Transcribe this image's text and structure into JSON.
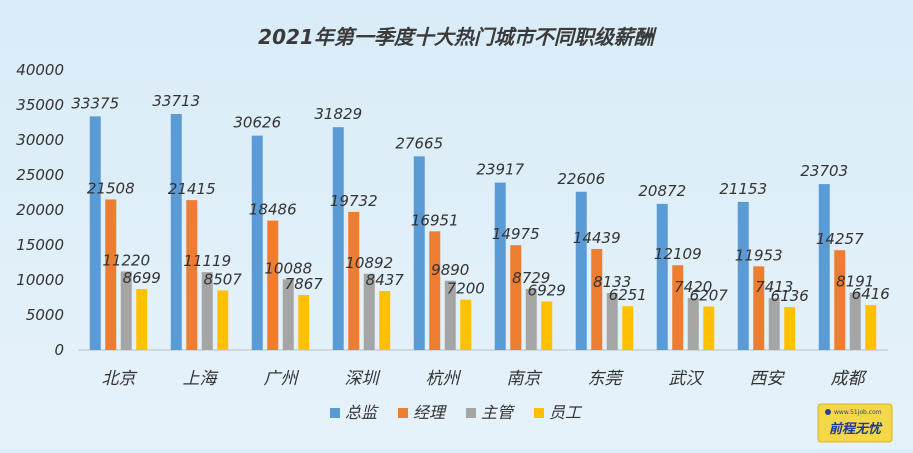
{
  "chart_data": {
    "type": "bar",
    "title": "2021年第一季度十大热门城市不同职级薪酬",
    "xlabel": "",
    "ylabel": "",
    "ylim": [
      0,
      40000
    ],
    "yticks": [
      0,
      5000,
      10000,
      15000,
      20000,
      25000,
      30000,
      35000,
      40000
    ],
    "grid": false,
    "legend_position": "bottom",
    "categories": [
      "北京",
      "上海",
      "广州",
      "深圳",
      "杭州",
      "南京",
      "东莞",
      "武汉",
      "西安",
      "成都"
    ],
    "series": [
      {
        "name": "总监",
        "color": "#5b9bd5",
        "values": [
          33375,
          33713,
          30626,
          31829,
          27665,
          23917,
          22606,
          20872,
          21153,
          23703
        ]
      },
      {
        "name": "经理",
        "color": "#ed7d31",
        "values": [
          21508,
          21415,
          18486,
          19732,
          16951,
          14975,
          14439,
          12109,
          11953,
          14257
        ]
      },
      {
        "name": "主管",
        "color": "#a5a5a5",
        "values": [
          11220,
          11119,
          10088,
          10892,
          9890,
          8729,
          8133,
          7420,
          7413,
          8191
        ]
      },
      {
        "name": "员工",
        "color": "#ffc000",
        "values": [
          8699,
          8507,
          7867,
          8437,
          7200,
          6929,
          6251,
          6207,
          6136,
          6416
        ]
      }
    ]
  },
  "logo": {
    "url": "www.51job.com",
    "text": "前程无忧"
  }
}
